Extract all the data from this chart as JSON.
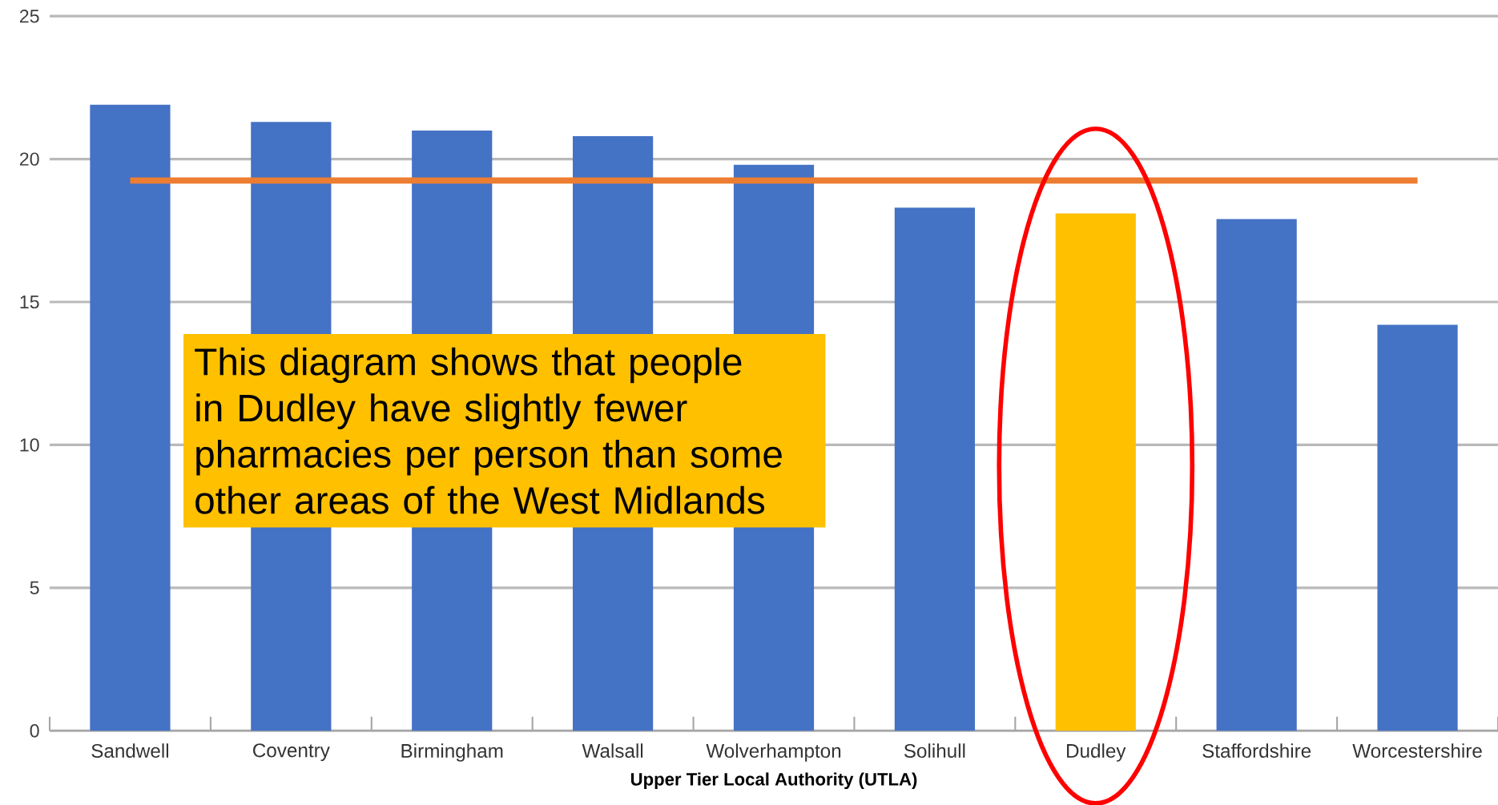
{
  "chart_data": {
    "type": "bar",
    "xlabel": "Upper Tier Local Authority (UTLA)",
    "categories": [
      "Sandwell",
      "Coventry",
      "Birmingham",
      "Walsall",
      "Wolverhampton",
      "Solihull",
      "Dudley",
      "Staffordshire",
      "Worcestershire"
    ],
    "series": [
      {
        "colors": [
          "#4472c4",
          "#4472c4",
          "#4472c4",
          "#4472c4",
          "#4472c4",
          "#4472c4",
          "#ffc000",
          "#4472c4",
          "#4472c4"
        ],
        "values": [
          21.9,
          21.3,
          21.0,
          20.8,
          19.8,
          18.3,
          18.1,
          17.9,
          14.2
        ]
      },
      {
        "type": "line",
        "color": "#ed7d31",
        "values": [
          19.25,
          19.25,
          19.25,
          19.25,
          19.25,
          19.25,
          19.25,
          19.25,
          19.25
        ]
      }
    ],
    "ylim": [
      0,
      25
    ],
    "yticks": [
      0,
      5,
      10,
      15,
      20,
      25
    ],
    "grid": "y",
    "annotations": [
      "This diagram shows that people in Dudley have slightly fewer pharmacies per person than some other areas of the West Midlands"
    ]
  }
}
